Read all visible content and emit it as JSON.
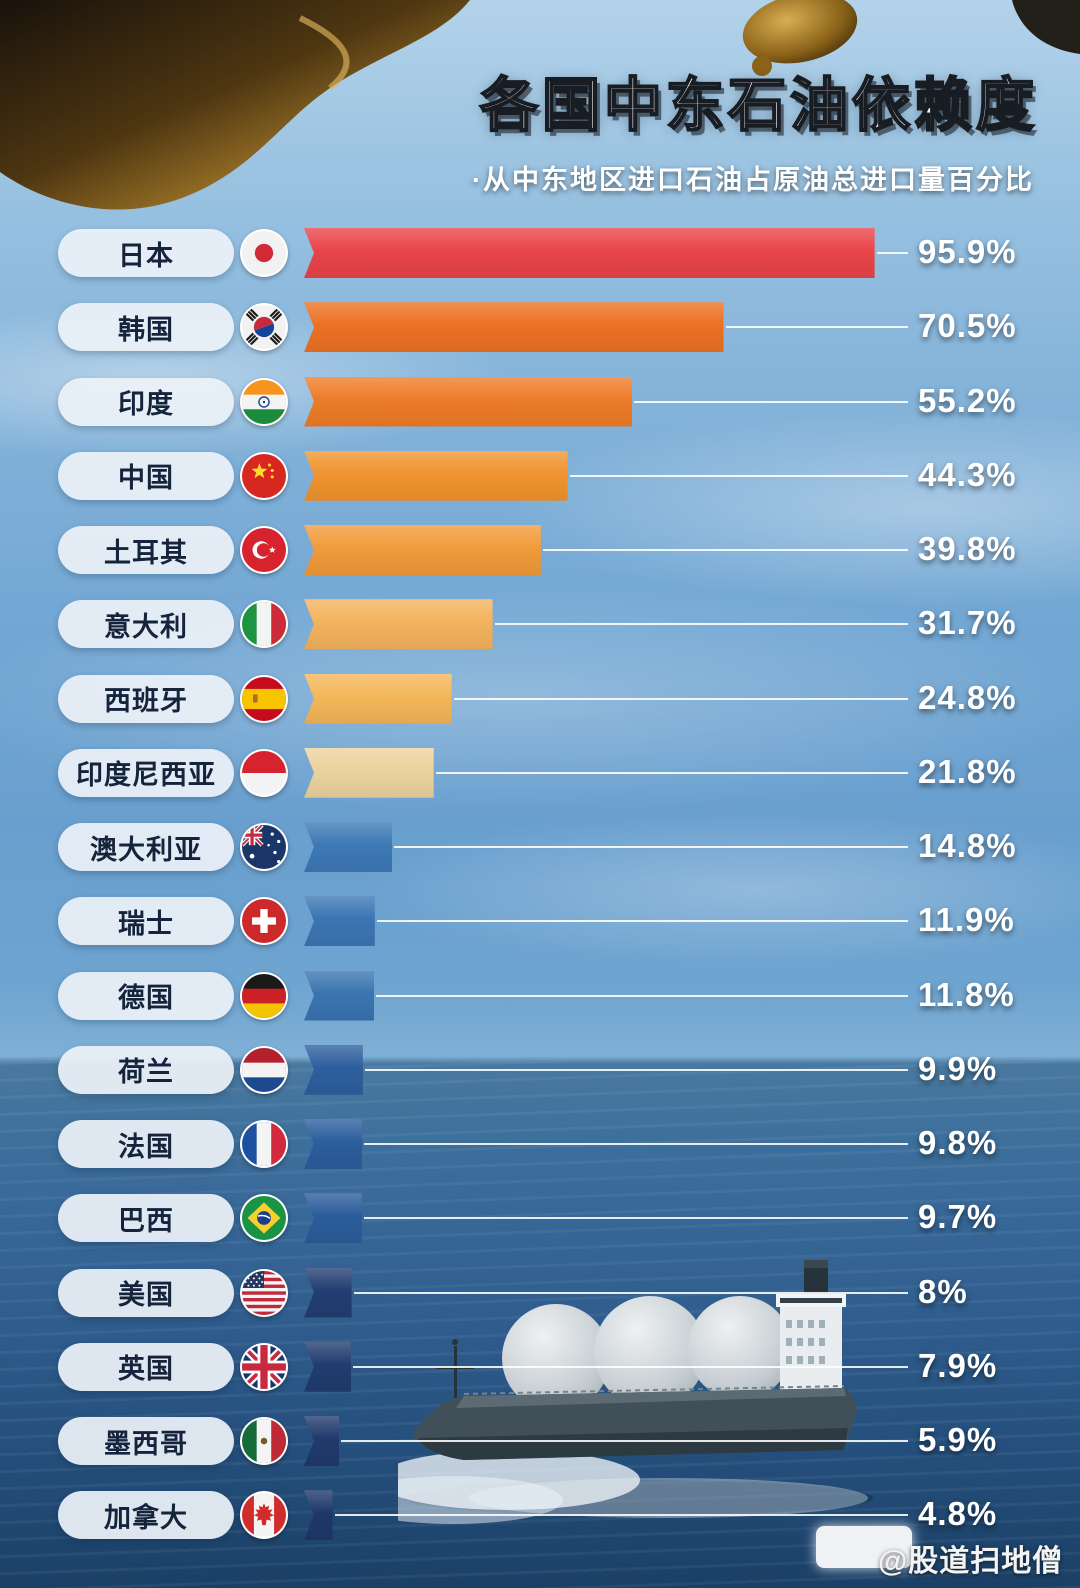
{
  "header": {
    "title": "各国中东石油依赖度",
    "subtitle": "·从中东地区进口石油占原油总进口量百分比"
  },
  "chart_data": {
    "type": "bar",
    "orientation": "horizontal",
    "title": "各国中东石油依赖度",
    "subtitle": "·从中东地区进口石油占原油总进口量百分比",
    "unit": "%",
    "xlim": [
      0,
      100
    ],
    "sort": "descending",
    "rows": [
      {
        "country": "日本",
        "flag": "jp",
        "flag_icon": "japan-flag-icon",
        "value": 95.9,
        "label": "95.9%",
        "color": "#e84449"
      },
      {
        "country": "韩国",
        "flag": "kr",
        "flag_icon": "south-korea-flag-icon",
        "value": 70.5,
        "label": "70.5%",
        "color": "#ec7124"
      },
      {
        "country": "印度",
        "flag": "in",
        "flag_icon": "india-flag-icon",
        "value": 55.2,
        "label": "55.2%",
        "color": "#ed7c27"
      },
      {
        "country": "中国",
        "flag": "cn",
        "flag_icon": "china-flag-icon",
        "value": 44.3,
        "label": "44.3%",
        "color": "#f0942f"
      },
      {
        "country": "土耳其",
        "flag": "tr",
        "flag_icon": "turkey-flag-icon",
        "value": 39.8,
        "label": "39.8%",
        "color": "#f19b3a"
      },
      {
        "country": "意大利",
        "flag": "it",
        "flag_icon": "italy-flag-icon",
        "value": 31.7,
        "label": "31.7%",
        "color": "#f3b35c"
      },
      {
        "country": "西班牙",
        "flag": "es",
        "flag_icon": "spain-flag-icon",
        "value": 24.8,
        "label": "24.8%",
        "color": "#f4b659"
      },
      {
        "country": "印度尼西亚",
        "flag": "id",
        "flag_icon": "indonesia-flag-icon",
        "value": 21.8,
        "label": "21.8%",
        "color": "#ecd39e"
      },
      {
        "country": "澳大利亚",
        "flag": "au",
        "flag_icon": "australia-flag-icon",
        "value": 14.8,
        "label": "14.8%",
        "color": "#3d79b6"
      },
      {
        "country": "瑞士",
        "flag": "ch",
        "flag_icon": "switzerland-flag-icon",
        "value": 11.9,
        "label": "11.9%",
        "color": "#3b76b3"
      },
      {
        "country": "德国",
        "flag": "de",
        "flag_icon": "germany-flag-icon",
        "value": 11.8,
        "label": "11.8%",
        "color": "#3a74b0"
      },
      {
        "country": "荷兰",
        "flag": "nl",
        "flag_icon": "netherlands-flag-icon",
        "value": 9.9,
        "label": "9.9%",
        "color": "#2d5f9e"
      },
      {
        "country": "法国",
        "flag": "fr",
        "flag_icon": "france-flag-icon",
        "value": 9.8,
        "label": "9.8%",
        "color": "#2c5e9d"
      },
      {
        "country": "巴西",
        "flag": "br",
        "flag_icon": "brazil-flag-icon",
        "value": 9.7,
        "label": "9.7%",
        "color": "#2b5c9a"
      },
      {
        "country": "美国",
        "flag": "us",
        "flag_icon": "usa-flag-icon",
        "value": 8,
        "label": "8%",
        "color": "#223e72"
      },
      {
        "country": "英国",
        "flag": "gb",
        "flag_icon": "uk-flag-icon",
        "value": 7.9,
        "label": "7.9%",
        "color": "#213c6f"
      },
      {
        "country": "墨西哥",
        "flag": "mx",
        "flag_icon": "mexico-flag-icon",
        "value": 5.9,
        "label": "5.9%",
        "color": "#203a6c"
      },
      {
        "country": "加拿大",
        "flag": "ca",
        "flag_icon": "canada-flag-icon",
        "value": 4.8,
        "label": "4.8%",
        "color": "#1f3869"
      }
    ]
  },
  "footer": {
    "watermark": "@股道扫地僧"
  }
}
